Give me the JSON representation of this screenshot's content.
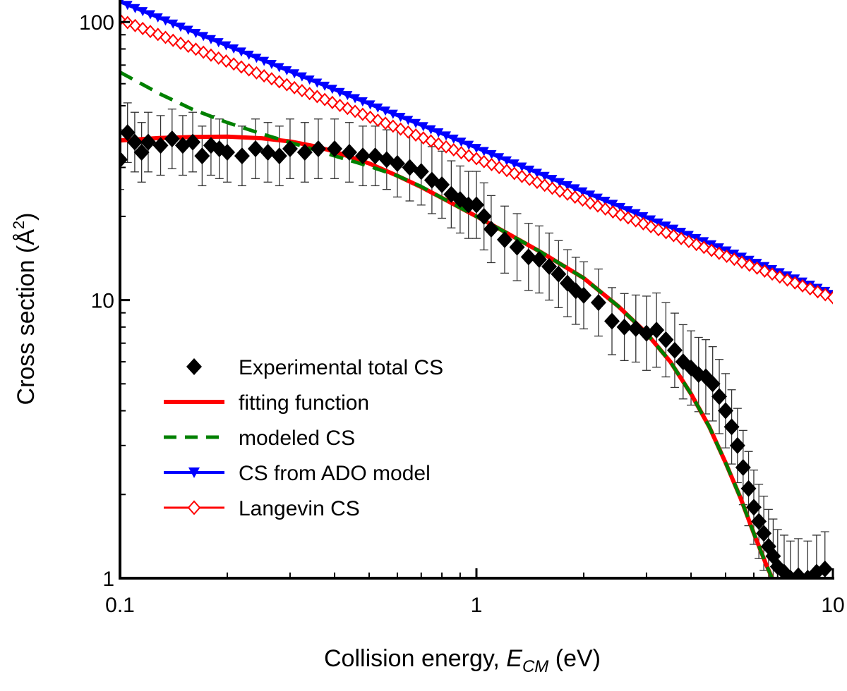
{
  "chart_data": {
    "type": "scatter",
    "xscale": "log",
    "yscale": "log",
    "xlim": [
      0.1,
      10
    ],
    "ylim": [
      1,
      120
    ],
    "xlabel": "Collision energy, ",
    "xlabel_italic": "E",
    "xlabel_sub": "CM",
    "xlabel_unit": " (eV)",
    "ylabel": "Cross section (Å",
    "ylabel_sup": "2",
    "ylabel_end": ")",
    "x_ticks": [
      {
        "value": 0.1,
        "label": "0.1"
      },
      {
        "value": 1,
        "label": "1"
      },
      {
        "value": 10,
        "label": "10"
      }
    ],
    "y_ticks": [
      {
        "value": 1,
        "label": "1"
      },
      {
        "value": 10,
        "label": "10"
      },
      {
        "value": 100,
        "label": "100"
      }
    ],
    "legend": {
      "placement": "bottom-left",
      "entries": [
        {
          "label": "Experimental total CS",
          "style": "diamond-filled",
          "color": "#000000"
        },
        {
          "label": "fitting function",
          "style": "solid-line",
          "color": "#ff0000"
        },
        {
          "label": "modeled CS",
          "style": "dashed-line",
          "color": "#008000"
        },
        {
          "label": "CS from ADO model",
          "style": "line-triangle",
          "color": "#0000ff"
        },
        {
          "label": "Langevin CS",
          "style": "line-open-diamond",
          "color": "#ff0000"
        }
      ]
    },
    "series": [
      {
        "name": "CS from ADO model",
        "color": "#0000ff",
        "marker": "triangle-down",
        "x_range": [
          0.1,
          10
        ],
        "y_at_0_1": 118,
        "y_at_10": 10.5,
        "n_points": 95
      },
      {
        "name": "Langevin CS",
        "color": "#ff0000",
        "marker": "open-diamond",
        "x_range": [
          0.1,
          10
        ],
        "y_at_0_1": 102,
        "y_at_10": 10.2,
        "n_points": 95
      },
      {
        "name": "fitting function",
        "color": "#ff0000",
        "x": [
          0.1,
          0.13,
          0.16,
          0.2,
          0.25,
          0.3,
          0.35,
          0.4,
          0.5,
          0.6,
          0.7,
          0.8,
          1.0,
          1.2,
          1.5,
          2.0,
          2.5,
          3.0,
          3.5,
          4.0,
          4.5,
          5.0,
          5.5,
          6.0,
          6.5,
          7.0
        ],
        "y": [
          37.5,
          38.3,
          38.6,
          38.7,
          38.2,
          37.2,
          35.8,
          34.2,
          31.0,
          28.0,
          25.5,
          23.3,
          20.0,
          17.6,
          15.0,
          12.0,
          9.5,
          7.6,
          6.0,
          4.6,
          3.5,
          2.6,
          1.95,
          1.45,
          1.12,
          0.9
        ]
      },
      {
        "name": "modeled CS",
        "color": "#008000",
        "x": [
          0.1,
          0.13,
          0.16,
          0.2,
          0.25,
          0.3,
          0.35,
          0.4,
          0.5,
          0.6,
          0.7,
          0.8,
          1.0,
          1.2,
          1.5,
          2.0,
          2.5,
          3.0,
          3.5,
          4.0,
          4.5,
          5.0,
          5.5,
          6.0,
          6.5,
          7.0
        ],
        "y": [
          66,
          55,
          48.5,
          43.5,
          39.6,
          36.9,
          34.8,
          33.0,
          30.3,
          28.0,
          25.6,
          23.3,
          20.0,
          17.6,
          15.0,
          12.0,
          9.5,
          7.6,
          6.0,
          4.6,
          3.5,
          2.6,
          1.95,
          1.45,
          1.12,
          0.9
        ]
      },
      {
        "name": "Experimental total CS",
        "color": "#000000",
        "marker": "diamond-filled",
        "x": [
          0.1,
          0.105,
          0.11,
          0.115,
          0.12,
          0.13,
          0.14,
          0.15,
          0.16,
          0.17,
          0.18,
          0.19,
          0.2,
          0.22,
          0.24,
          0.26,
          0.28,
          0.3,
          0.33,
          0.36,
          0.4,
          0.44,
          0.48,
          0.52,
          0.56,
          0.6,
          0.65,
          0.7,
          0.75,
          0.8,
          0.85,
          0.9,
          0.95,
          1.0,
          1.05,
          1.1,
          1.2,
          1.3,
          1.4,
          1.5,
          1.6,
          1.7,
          1.8,
          1.9,
          2.0,
          2.2,
          2.4,
          2.6,
          2.8,
          3.0,
          3.2,
          3.4,
          3.6,
          3.8,
          4.0,
          4.2,
          4.4,
          4.6,
          4.8,
          5.0,
          5.2,
          5.4,
          5.6,
          5.8,
          6.0,
          6.2,
          6.4,
          6.6,
          6.8,
          7.0,
          7.3,
          7.6,
          8.0,
          8.5,
          9.0,
          9.5
        ],
        "y": [
          32,
          40,
          37,
          34,
          37,
          36,
          38,
          36,
          37,
          33,
          36,
          35,
          34,
          33,
          35,
          34,
          33,
          35,
          34,
          35,
          35,
          34,
          33,
          33,
          32,
          31,
          30,
          29,
          27,
          26,
          24,
          23,
          22,
          22,
          20,
          18,
          16.5,
          15.5,
          14.3,
          14,
          13.2,
          12.4,
          11.5,
          10.8,
          10.4,
          9.8,
          8.4,
          8.0,
          7.9,
          7.6,
          7.8,
          7.2,
          6.6,
          6.0,
          5.7,
          5.4,
          5.3,
          5.0,
          4.5,
          4.0,
          3.5,
          3.0,
          2.5,
          2.1,
          1.8,
          1.6,
          1.45,
          1.3,
          1.2,
          1.1,
          1.05,
          1.0,
          1.02,
          1.0,
          1.05,
          1.08
        ]
      }
    ]
  }
}
